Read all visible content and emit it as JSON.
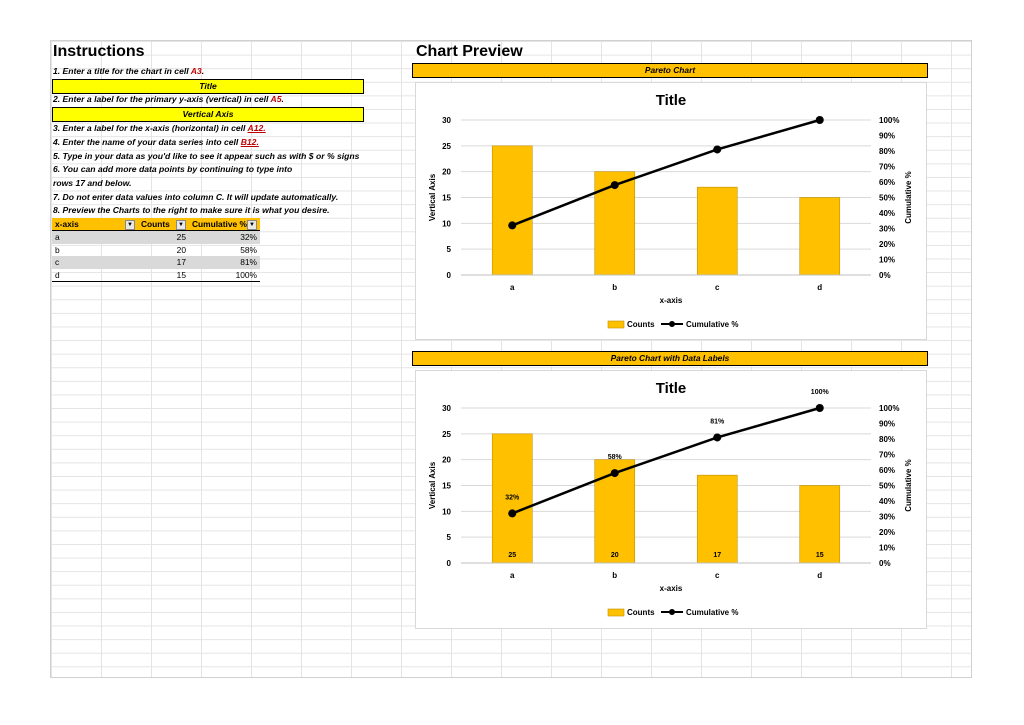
{
  "instructions": {
    "heading": "Instructions",
    "steps": [
      {
        "pre": "1.  Enter a title for the chart in cell ",
        "ref": "A3",
        "post": "."
      },
      {
        "pre": "2.  Enter a label for the primary y-axis (vertical) in cell ",
        "ref": "A5",
        "post": "."
      },
      {
        "pre": "3.  Enter a label for the x-axis (horizontal) in cell ",
        "ref": "A12.",
        "post": ""
      },
      {
        "pre": "4.  Enter the name of your data series into cell ",
        "ref": "B12.",
        "post": ""
      },
      {
        "pre": "5.  Type in your data as you'd like to see it appear such as with $  or % signs",
        "ref": "",
        "post": ""
      },
      {
        "pre": "6.  You can add more data points by continuing to type into",
        "ref": "",
        "post": ""
      },
      {
        "pre": "rows 17 and below.",
        "ref": "",
        "post": ""
      },
      {
        "pre": "7. Do not enter data values into column C. It will update automatically.",
        "ref": "",
        "post": ""
      },
      {
        "pre": "8.  Preview the Charts to the right to make sure it is what you desire.",
        "ref": "",
        "post": ""
      }
    ],
    "title_cell": "Title",
    "vaxis_cell": "Vertical Axis"
  },
  "table": {
    "headers": [
      "x-axis",
      "Counts",
      "Cumulative %"
    ],
    "rows": [
      [
        "a",
        "25",
        "32%"
      ],
      [
        "b",
        "20",
        "58%"
      ],
      [
        "c",
        "17",
        "81%"
      ],
      [
        "d",
        "15",
        "100%"
      ]
    ]
  },
  "preview": {
    "heading": "Chart Preview",
    "chart1_header": "Pareto Chart",
    "chart2_header": "Pareto Chart with Data Labels"
  },
  "chart_data": [
    {
      "type": "bar",
      "title": "Title",
      "xlabel": "x-axis",
      "ylabel": "Vertical Axis",
      "y2label": "Cumulative %",
      "categories": [
        "a",
        "b",
        "c",
        "d"
      ],
      "ylim": [
        0,
        30
      ],
      "yticks": [
        "0",
        "5",
        "10",
        "15",
        "20",
        "25",
        "30"
      ],
      "y2ticks": [
        "0%",
        "10%",
        "20%",
        "30%",
        "40%",
        "50%",
        "60%",
        "70%",
        "80%",
        "90%",
        "100%"
      ],
      "series": [
        {
          "name": "Counts",
          "type": "bar",
          "values": [
            25,
            20,
            17,
            15
          ],
          "color": "#ffc000"
        },
        {
          "name": "Cumulative %",
          "type": "line",
          "axis": "secondary",
          "values": [
            32,
            58,
            81,
            100
          ],
          "color": "#000000"
        }
      ],
      "data_labels": false,
      "legend": "bottom"
    },
    {
      "type": "bar",
      "title": "Title",
      "xlabel": "x-axis",
      "ylabel": "Vertical Axis",
      "y2label": "Cumulative %",
      "categories": [
        "a",
        "b",
        "c",
        "d"
      ],
      "ylim": [
        0,
        30
      ],
      "yticks": [
        "0",
        "5",
        "10",
        "15",
        "20",
        "25",
        "30"
      ],
      "y2ticks": [
        "0%",
        "10%",
        "20%",
        "30%",
        "40%",
        "50%",
        "60%",
        "70%",
        "80%",
        "90%",
        "100%"
      ],
      "series": [
        {
          "name": "Counts",
          "type": "bar",
          "values": [
            25,
            20,
            17,
            15
          ],
          "color": "#ffc000",
          "labels": [
            "25",
            "20",
            "17",
            "15"
          ]
        },
        {
          "name": "Cumulative %",
          "type": "line",
          "axis": "secondary",
          "values": [
            32,
            58,
            81,
            100
          ],
          "color": "#000000",
          "labels": [
            "32%",
            "58%",
            "81%",
            "100%"
          ]
        }
      ],
      "data_labels": true,
      "legend": "bottom"
    }
  ]
}
